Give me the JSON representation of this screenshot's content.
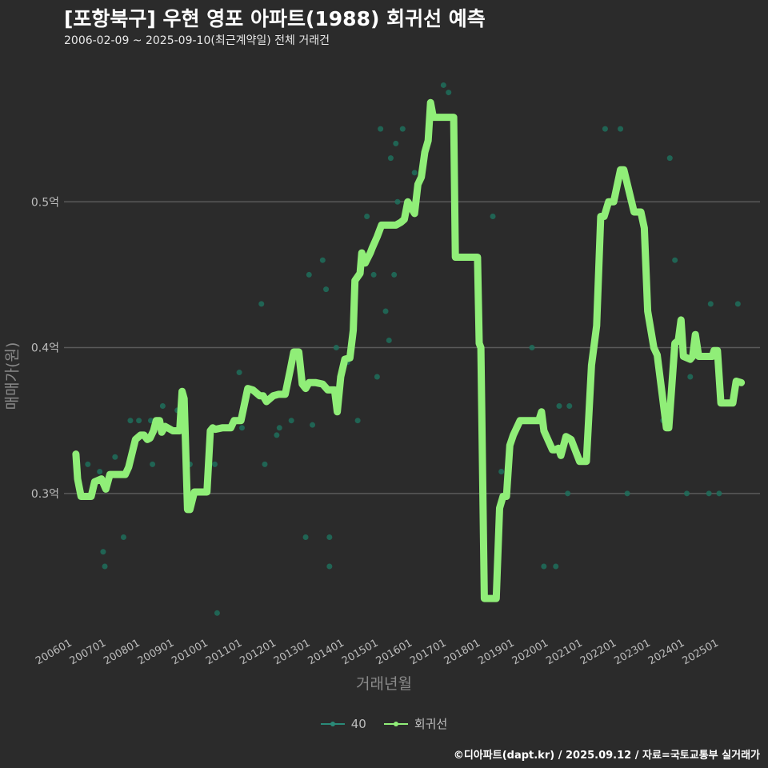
{
  "title": "[포항북구] 우현 영포 아파트(1988) 회귀선 예측",
  "subtitle": "2006-02-09 ~ 2025-09-10(최근계약일) 전체 거래건",
  "caption": "©디아파트(dapt.kr) / 2025.09.12 / 자료=국토교통부 실거래가",
  "colors": {
    "background": "#2b2b2b",
    "grid": "#5a5a5a",
    "regression": "#90ee78",
    "points": "#1f6f5c",
    "legend_40": "#2a8a78"
  },
  "legend": {
    "items": [
      {
        "label": "40",
        "color": "#2a8a78"
      },
      {
        "label": "회귀선",
        "color": "#90ee78"
      }
    ]
  },
  "chart_data": {
    "type": "line",
    "title": "[포항북구] 우현 영포 아파트(1988) 회귀선 예측",
    "xlabel": "거래년월",
    "ylabel": "매매가(원)",
    "x_unit": "decimal year",
    "xlim": [
      2005.75,
      2026.2
    ],
    "ylim": [
      0.205,
      0.6
    ],
    "yticks": [
      0.3,
      0.4,
      0.5
    ],
    "ytick_labels": [
      "0.3억",
      "0.4억",
      "0.5억"
    ],
    "xticks": [
      2006,
      2007,
      2008,
      2009,
      2010,
      2011,
      2012,
      2013,
      2014,
      2015,
      2016,
      2017,
      2018,
      2019,
      2020,
      2021,
      2022,
      2023,
      2024,
      2025
    ],
    "xtick_labels": [
      "200601",
      "200701",
      "200801",
      "200901",
      "201001",
      "201101",
      "201201",
      "201301",
      "201401",
      "201501",
      "201601",
      "201701",
      "201801",
      "201901",
      "202001",
      "202101",
      "202201",
      "202301",
      "202401",
      "202501"
    ],
    "series": [
      {
        "name": "회귀선",
        "type": "line",
        "x": [
          2006.1,
          2006.15,
          2006.25,
          2006.55,
          2006.65,
          2006.85,
          2006.98,
          2007.1,
          2007.22,
          2007.55,
          2007.65,
          2007.85,
          2008.0,
          2008.1,
          2008.2,
          2008.28,
          2008.38,
          2008.46,
          2008.56,
          2008.62,
          2008.72,
          2008.95,
          2009.15,
          2009.22,
          2009.28,
          2009.38,
          2009.45,
          2009.58,
          2009.95,
          2010.05,
          2010.12,
          2010.2,
          2010.4,
          2010.65,
          2010.75,
          2010.95,
          2011.15,
          2011.3,
          2011.5,
          2011.6,
          2011.7,
          2011.9,
          2012.05,
          2012.1,
          2012.25,
          2012.4,
          2012.5,
          2012.65,
          2012.75,
          2012.85,
          2012.95,
          2013.15,
          2013.35,
          2013.5,
          2013.7,
          2013.78,
          2013.88,
          2014.0,
          2014.15,
          2014.25,
          2014.3,
          2014.45,
          2014.5,
          2014.6,
          2014.75,
          2014.8,
          2014.95,
          2015.08,
          2015.5,
          2015.65,
          2015.75,
          2015.85,
          2015.95,
          2016.05,
          2016.15,
          2016.25,
          2016.35,
          2016.45,
          2016.52,
          2016.6,
          2016.7,
          2016.8,
          2017.2,
          2017.25,
          2017.9,
          2017.95,
          2018.0,
          2018.1,
          2018.45,
          2018.55,
          2018.65,
          2018.75,
          2018.85,
          2018.95,
          2019.15,
          2019.7,
          2019.78,
          2019.85,
          2020.1,
          2020.18,
          2020.28,
          2020.35,
          2020.5,
          2020.65,
          2020.9,
          2020.98,
          2021.1,
          2021.25,
          2021.4,
          2021.52,
          2021.62,
          2021.75,
          2021.9,
          2022.1,
          2022.2,
          2022.5,
          2022.62,
          2022.7,
          2022.8,
          2022.9,
          2023.08,
          2023.18,
          2023.45,
          2023.52,
          2023.7,
          2023.8,
          2023.88,
          2023.95,
          2024.15,
          2024.22,
          2024.3,
          2024.4,
          2024.8,
          2024.85,
          2024.95,
          2025.05,
          2025.4,
          2025.5,
          2025.65
        ],
        "y": [
          0.327,
          0.31,
          0.298,
          0.298,
          0.308,
          0.31,
          0.303,
          0.313,
          0.313,
          0.313,
          0.318,
          0.337,
          0.34,
          0.34,
          0.337,
          0.338,
          0.343,
          0.35,
          0.35,
          0.342,
          0.346,
          0.343,
          0.343,
          0.37,
          0.365,
          0.289,
          0.289,
          0.301,
          0.301,
          0.343,
          0.345,
          0.344,
          0.345,
          0.345,
          0.35,
          0.35,
          0.372,
          0.371,
          0.367,
          0.367,
          0.363,
          0.367,
          0.368,
          0.368,
          0.368,
          0.385,
          0.397,
          0.397,
          0.375,
          0.372,
          0.376,
          0.376,
          0.375,
          0.371,
          0.371,
          0.356,
          0.38,
          0.392,
          0.393,
          0.412,
          0.446,
          0.451,
          0.465,
          0.458,
          0.465,
          0.468,
          0.476,
          0.484,
          0.484,
          0.486,
          0.488,
          0.5,
          0.496,
          0.492,
          0.512,
          0.517,
          0.534,
          0.542,
          0.568,
          0.558,
          0.558,
          0.558,
          0.558,
          0.462,
          0.462,
          0.403,
          0.4,
          0.228,
          0.228,
          0.29,
          0.298,
          0.298,
          0.333,
          0.34,
          0.35,
          0.35,
          0.356,
          0.343,
          0.33,
          0.33,
          0.331,
          0.326,
          0.339,
          0.337,
          0.322,
          0.322,
          0.322,
          0.388,
          0.415,
          0.49,
          0.49,
          0.5,
          0.5,
          0.522,
          0.522,
          0.493,
          0.493,
          0.493,
          0.482,
          0.425,
          0.4,
          0.395,
          0.345,
          0.345,
          0.403,
          0.405,
          0.419,
          0.394,
          0.392,
          0.394,
          0.409,
          0.394,
          0.394,
          0.398,
          0.398,
          0.362,
          0.362,
          0.377,
          0.376
        ]
      },
      {
        "name": "40",
        "type": "scatter",
        "x": [
          2006.45,
          2006.8,
          2006.9,
          2006.95,
          2007.25,
          2007.5,
          2007.7,
          2007.95,
          2008.3,
          2008.35,
          2008.65,
          2009.08,
          2009.45,
          2010.05,
          2010.18,
          2010.25,
          2010.9,
          2010.98,
          2011.55,
          2011.65,
          2012.0,
          2012.08,
          2012.43,
          2012.85,
          2012.95,
          2013.05,
          2013.35,
          2013.45,
          2013.55,
          2013.55,
          2013.75,
          2014.08,
          2014.38,
          2014.45,
          2014.65,
          2014.85,
          2014.95,
          2015.05,
          2015.2,
          2015.3,
          2015.35,
          2015.45,
          2015.5,
          2015.55,
          2015.7,
          2016.05,
          2016.9,
          2017.05,
          2018.35,
          2018.6,
          2019.5,
          2019.85,
          2020.2,
          2020.3,
          2020.55,
          2020.6,
          2021.6,
          2021.65,
          2022.1,
          2022.3,
          2023.35,
          2023.55,
          2023.7,
          2024.05,
          2024.15,
          2024.7,
          2024.75,
          2025.0,
          2025.55
        ],
        "y": [
          0.32,
          0.315,
          0.26,
          0.25,
          0.325,
          0.27,
          0.35,
          0.35,
          0.35,
          0.32,
          0.36,
          0.357,
          0.32,
          0.343,
          0.32,
          0.218,
          0.383,
          0.345,
          0.43,
          0.32,
          0.34,
          0.345,
          0.35,
          0.27,
          0.45,
          0.347,
          0.46,
          0.44,
          0.25,
          0.27,
          0.4,
          0.39,
          0.35,
          0.45,
          0.49,
          0.45,
          0.38,
          0.55,
          0.425,
          0.405,
          0.53,
          0.45,
          0.54,
          0.5,
          0.55,
          0.52,
          0.58,
          0.575,
          0.49,
          0.315,
          0.4,
          0.25,
          0.25,
          0.36,
          0.3,
          0.36,
          0.49,
          0.55,
          0.55,
          0.3,
          0.35,
          0.53,
          0.46,
          0.3,
          0.38,
          0.3,
          0.43,
          0.3,
          0.43
        ]
      }
    ]
  }
}
